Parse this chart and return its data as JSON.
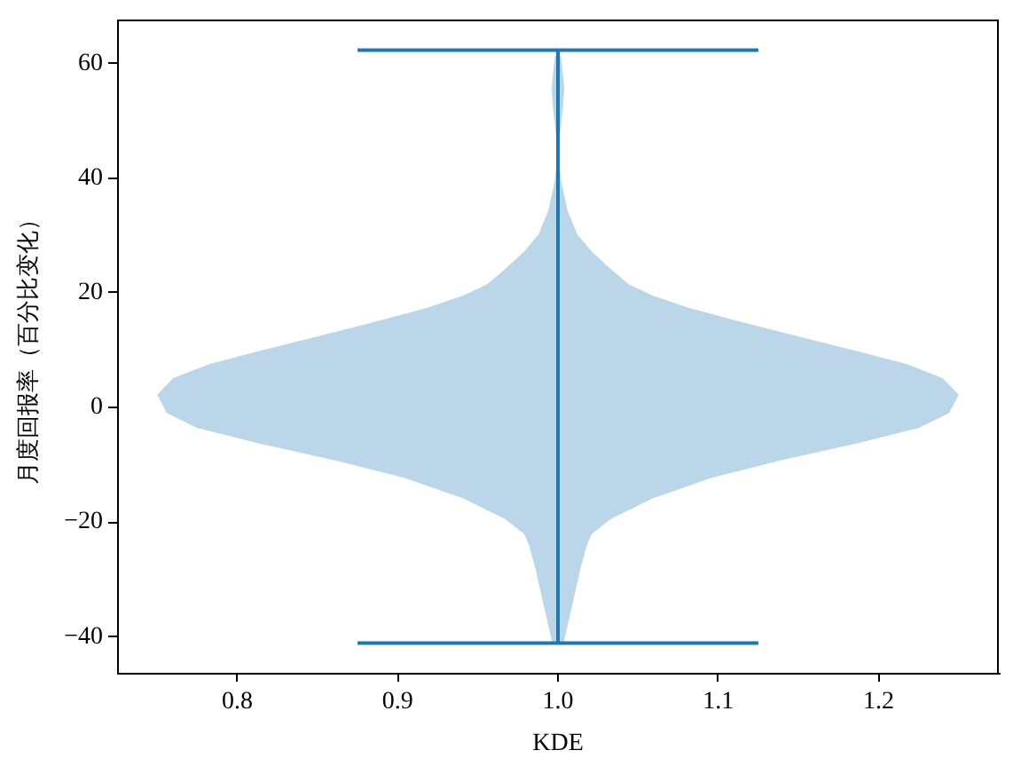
{
  "chart_data": {
    "type": "area",
    "xlabel": "KDE",
    "ylabel": "月度回报率（百分比变化）",
    "series": [
      {
        "color": "#bbd6e8",
        "x": [
          1.004,
          1.004,
          1.009,
          1.014,
          1.018,
          1.021,
          1.033,
          1.059,
          1.096,
          1.14,
          1.188,
          1.225,
          1.244,
          1.25,
          1.24,
          1.218,
          1.188,
          1.151,
          1.114,
          1.081,
          1.059,
          1.044,
          1.033,
          1.021,
          1.012,
          1.006,
          1.002,
          1.0,
          1.002,
          1.003,
          1.004,
          1.003,
          1.002,
          1.0,
          0.998,
          0.997,
          0.996,
          0.997,
          0.998,
          1.0,
          0.998,
          0.994,
          0.988,
          0.979,
          0.967,
          0.956,
          0.941,
          0.919,
          0.886,
          0.849,
          0.812,
          0.782,
          0.76,
          0.75,
          0.756,
          0.775,
          0.812,
          0.86,
          0.904,
          0.941,
          0.967,
          0.979,
          0.982,
          0.986,
          0.991,
          0.996,
          0.996
        ],
        "values": [
          -41.1,
          -40.5,
          -34.4,
          -28.2,
          -24.1,
          -22.1,
          -19.5,
          -15.9,
          -12.3,
          -9.2,
          -6.2,
          -3.6,
          -1.0,
          2.2,
          5.1,
          7.5,
          9.7,
          12.3,
          14.9,
          17.4,
          19.5,
          21.5,
          24.1,
          27.2,
          30.2,
          34.3,
          39.5,
          44.6,
          49.5,
          52,
          55.4,
          58.5,
          61,
          62.3,
          61,
          58.5,
          55.4,
          52,
          49.5,
          44.6,
          39.5,
          34.3,
          30.2,
          27.2,
          24.1,
          21.5,
          19.5,
          17.4,
          14.9,
          12.3,
          9.7,
          7.5,
          5.1,
          2.2,
          -1.0,
          -3.6,
          -6.2,
          -9.2,
          -12.3,
          -15.9,
          -19.5,
          -22.1,
          -24.1,
          -28.2,
          -34.4,
          -40.5,
          -41.1
        ]
      },
      {
        "type": "line",
        "color": "#1f77b4",
        "x": [
          1,
          1
        ],
        "values": [
          -41.1,
          62.3
        ]
      },
      {
        "type": "line",
        "color": "#1f77b4",
        "x": [
          0.875,
          1.125
        ],
        "values": [
          62.3,
          62.3
        ]
      },
      {
        "type": "line",
        "color": "#1f77b4",
        "x": [
          0.875,
          1.125
        ],
        "values": [
          -41.1,
          -41.1
        ]
      }
    ],
    "xlim": [
      0.725,
      1.275
    ],
    "ylim": [
      -46.3,
      67.5
    ],
    "xticks": [
      0.8,
      0.9,
      {
        "value": 1,
        "label": "1.0"
      },
      1.1,
      1.2
    ],
    "yticks": [
      {
        "value": -40,
        "label": "−40"
      },
      {
        "value": -20,
        "label": "−20"
      },
      0,
      20,
      40,
      60
    ]
  }
}
